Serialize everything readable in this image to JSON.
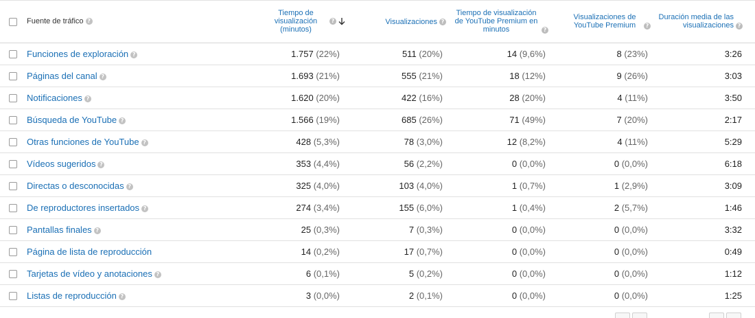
{
  "header": {
    "source_label": "Fuente de tráfico",
    "columns": [
      {
        "label": "Tiempo de visualización (minutos)",
        "sorted": "desc"
      },
      {
        "label": "Visualizaciones"
      },
      {
        "label": "Tiempo de visualización de YouTube Premium en minutos"
      },
      {
        "label": "Visualizaciones de YouTube Premium"
      },
      {
        "label": "Duración media de las visualizaciones"
      }
    ]
  },
  "rows": [
    {
      "source": "Funciones de exploración",
      "watch": "1.757",
      "watch_pct": "(22%)",
      "views": "511",
      "views_pct": "(20%)",
      "premium_watch": "14",
      "premium_watch_pct": "(9,6%)",
      "premium_views": "8",
      "premium_views_pct": "(23%)",
      "avg": "3:26",
      "help": true
    },
    {
      "source": "Páginas del canal",
      "watch": "1.693",
      "watch_pct": "(21%)",
      "views": "555",
      "views_pct": "(21%)",
      "premium_watch": "18",
      "premium_watch_pct": "(12%)",
      "premium_views": "9",
      "premium_views_pct": "(26%)",
      "avg": "3:03",
      "help": true
    },
    {
      "source": "Notificaciones",
      "watch": "1.620",
      "watch_pct": "(20%)",
      "views": "422",
      "views_pct": "(16%)",
      "premium_watch": "28",
      "premium_watch_pct": "(20%)",
      "premium_views": "4",
      "premium_views_pct": "(11%)",
      "avg": "3:50",
      "help": true
    },
    {
      "source": "Búsqueda de YouTube",
      "watch": "1.566",
      "watch_pct": "(19%)",
      "views": "685",
      "views_pct": "(26%)",
      "premium_watch": "71",
      "premium_watch_pct": "(49%)",
      "premium_views": "7",
      "premium_views_pct": "(20%)",
      "avg": "2:17",
      "help": true
    },
    {
      "source": "Otras funciones de YouTube",
      "watch": "428",
      "watch_pct": "(5,3%)",
      "views": "78",
      "views_pct": "(3,0%)",
      "premium_watch": "12",
      "premium_watch_pct": "(8,2%)",
      "premium_views": "4",
      "premium_views_pct": "(11%)",
      "avg": "5:29",
      "help": true
    },
    {
      "source": "Vídeos sugeridos",
      "watch": "353",
      "watch_pct": "(4,4%)",
      "views": "56",
      "views_pct": "(2,2%)",
      "premium_watch": "0",
      "premium_watch_pct": "(0,0%)",
      "premium_views": "0",
      "premium_views_pct": "(0,0%)",
      "avg": "6:18",
      "help": true
    },
    {
      "source": "Directas o desconocidas",
      "watch": "325",
      "watch_pct": "(4,0%)",
      "views": "103",
      "views_pct": "(4,0%)",
      "premium_watch": "1",
      "premium_watch_pct": "(0,7%)",
      "premium_views": "1",
      "premium_views_pct": "(2,9%)",
      "avg": "3:09",
      "help": true
    },
    {
      "source": "De reproductores insertados",
      "watch": "274",
      "watch_pct": "(3,4%)",
      "views": "155",
      "views_pct": "(6,0%)",
      "premium_watch": "1",
      "premium_watch_pct": "(0,4%)",
      "premium_views": "2",
      "premium_views_pct": "(5,7%)",
      "avg": "1:46",
      "help": true
    },
    {
      "source": "Pantallas finales",
      "watch": "25",
      "watch_pct": "(0,3%)",
      "views": "7",
      "views_pct": "(0,3%)",
      "premium_watch": "0",
      "premium_watch_pct": "(0,0%)",
      "premium_views": "0",
      "premium_views_pct": "(0,0%)",
      "avg": "3:32",
      "help": true
    },
    {
      "source": "Página de lista de reproducción",
      "watch": "14",
      "watch_pct": "(0,2%)",
      "views": "17",
      "views_pct": "(0,7%)",
      "premium_watch": "0",
      "premium_watch_pct": "(0,0%)",
      "premium_views": "0",
      "premium_views_pct": "(0,0%)",
      "avg": "0:49",
      "help": false
    },
    {
      "source": "Tarjetas de vídeo y anotaciones",
      "watch": "6",
      "watch_pct": "(0,1%)",
      "views": "5",
      "views_pct": "(0,2%)",
      "premium_watch": "0",
      "premium_watch_pct": "(0,0%)",
      "premium_views": "0",
      "premium_views_pct": "(0,0%)",
      "avg": "1:12",
      "help": true
    },
    {
      "source": "Listas de reproducción",
      "watch": "3",
      "watch_pct": "(0,0%)",
      "views": "2",
      "views_pct": "(0,1%)",
      "premium_watch": "0",
      "premium_watch_pct": "(0,0%)",
      "premium_views": "0",
      "premium_views_pct": "(0,0%)",
      "avg": "1:25",
      "help": true
    }
  ],
  "icons": {
    "help": "help-circle-icon",
    "sort": "arrow-down-icon"
  },
  "colors": {
    "link": "#1a6fb5",
    "border": "#e0e0e0"
  }
}
